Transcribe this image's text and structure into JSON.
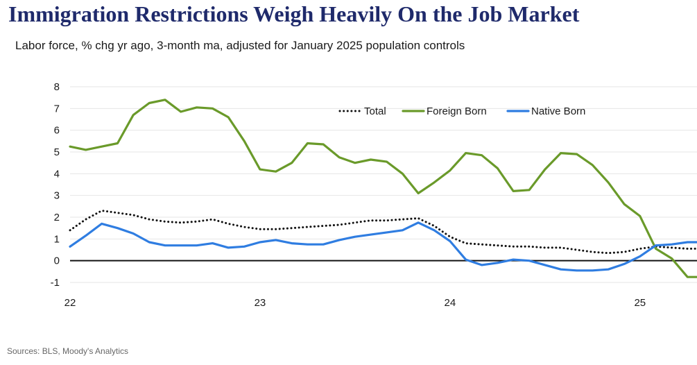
{
  "title": "Immigration Restrictions Weigh Heavily On the Job Market",
  "subtitle": "Labor force, % chg yr ago, 3-month ma, adjusted for January 2025 population controls",
  "source": "Sources: BLS, Moody's Analytics",
  "chart_data": {
    "type": "line",
    "title": "Immigration Restrictions Weigh Heavily On the Job Market",
    "xlabel": "",
    "ylabel": "",
    "ylim": [
      -1,
      8
    ],
    "yticks": [
      -1,
      0,
      1,
      2,
      3,
      4,
      5,
      6,
      7,
      8
    ],
    "xlim": [
      2022.0,
      2025.3
    ],
    "xticks": [
      {
        "value": 2022,
        "label": "22"
      },
      {
        "value": 2023,
        "label": "23"
      },
      {
        "value": 2024,
        "label": "24"
      },
      {
        "value": 2025,
        "label": "25"
      }
    ],
    "grid": true,
    "legend_position": "top-right",
    "x": [
      2022.0,
      2022.083,
      2022.167,
      2022.25,
      2022.333,
      2022.417,
      2022.5,
      2022.583,
      2022.667,
      2022.75,
      2022.833,
      2022.917,
      2023.0,
      2023.083,
      2023.167,
      2023.25,
      2023.333,
      2023.417,
      2023.5,
      2023.583,
      2023.667,
      2023.75,
      2023.833,
      2023.917,
      2024.0,
      2024.083,
      2024.167,
      2024.25,
      2024.333,
      2024.417,
      2024.5,
      2024.583,
      2024.667,
      2024.75,
      2024.833,
      2024.917,
      2025.0,
      2025.083,
      2025.167,
      2025.25,
      2025.3
    ],
    "series": [
      {
        "name": "Total",
        "color": "#111111",
        "style": "dotted",
        "values": [
          1.4,
          1.9,
          2.3,
          2.2,
          2.1,
          1.9,
          1.8,
          1.75,
          1.8,
          1.9,
          1.7,
          1.55,
          1.45,
          1.45,
          1.5,
          1.55,
          1.6,
          1.65,
          1.75,
          1.85,
          1.85,
          1.9,
          1.95,
          1.6,
          1.1,
          0.8,
          0.75,
          0.7,
          0.65,
          0.65,
          0.6,
          0.6,
          0.5,
          0.4,
          0.35,
          0.4,
          0.55,
          0.65,
          0.6,
          0.55,
          0.55
        ]
      },
      {
        "name": "Foreign Born",
        "color": "#6a9a2a",
        "style": "solid",
        "values": [
          5.25,
          5.1,
          5.25,
          5.4,
          6.7,
          7.25,
          7.4,
          6.85,
          7.05,
          7.0,
          6.6,
          5.5,
          4.2,
          4.1,
          4.5,
          5.4,
          5.35,
          4.75,
          4.5,
          4.65,
          4.55,
          4.0,
          3.1,
          3.6,
          4.15,
          4.95,
          4.85,
          4.25,
          3.2,
          3.25,
          4.2,
          4.95,
          4.9,
          4.4,
          3.6,
          2.6,
          2.05,
          0.55,
          0.1,
          -0.75,
          -0.75
        ]
      },
      {
        "name": "Native Born",
        "color": "#2f7de1",
        "style": "solid",
        "values": [
          0.65,
          1.15,
          1.7,
          1.5,
          1.25,
          0.85,
          0.7,
          0.7,
          0.7,
          0.8,
          0.6,
          0.65,
          0.85,
          0.95,
          0.8,
          0.75,
          0.75,
          0.95,
          1.1,
          1.2,
          1.3,
          1.4,
          1.75,
          1.4,
          0.9,
          0.05,
          -0.2,
          -0.1,
          0.05,
          0.0,
          -0.2,
          -0.4,
          -0.45,
          -0.45,
          -0.4,
          -0.15,
          0.2,
          0.7,
          0.75,
          0.85,
          0.85
        ]
      }
    ]
  }
}
